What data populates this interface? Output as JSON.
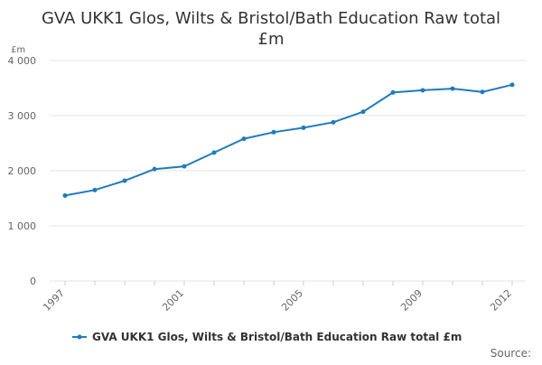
{
  "chart_data": {
    "type": "line",
    "title": "GVA UKK1 Glos, Wilts & Bristol/Bath Education Raw total £m",
    "title_lines": [
      "GVA UKK1 Glos, Wilts & Bristol/Bath Education Raw total",
      "£m"
    ],
    "ylabel": "£m",
    "xlabel": "",
    "x": [
      1997,
      1998,
      1999,
      2000,
      2001,
      2002,
      2003,
      2004,
      2005,
      2006,
      2007,
      2008,
      2009,
      2010,
      2011,
      2012
    ],
    "series": [
      {
        "name": "GVA UKK1 Glos, Wilts & Bristol/Bath Education Raw total £m",
        "values": [
          1550,
          1650,
          1820,
          2030,
          2080,
          2330,
          2580,
          2700,
          2780,
          2880,
          3070,
          3420,
          3460,
          3490,
          3430,
          3560
        ]
      }
    ],
    "ylim": [
      0,
      4000
    ],
    "y_ticks": [
      0,
      1000,
      2000,
      3000,
      4000
    ],
    "y_tick_labels": [
      "0",
      "1 000",
      "2 000",
      "3 000",
      "4 000"
    ],
    "x_tick_labels": [
      "1997",
      "2001",
      "2005",
      "2009",
      "2012"
    ],
    "x_tick_values": [
      1997,
      2001,
      2005,
      2009,
      2012
    ],
    "grid": true,
    "legend_position": "bottom",
    "source_label": "Source:",
    "colors": {
      "series": "#1f7bbd",
      "grid": "#e6e6e6",
      "axis_text": "#666666",
      "title": "#333333"
    }
  }
}
